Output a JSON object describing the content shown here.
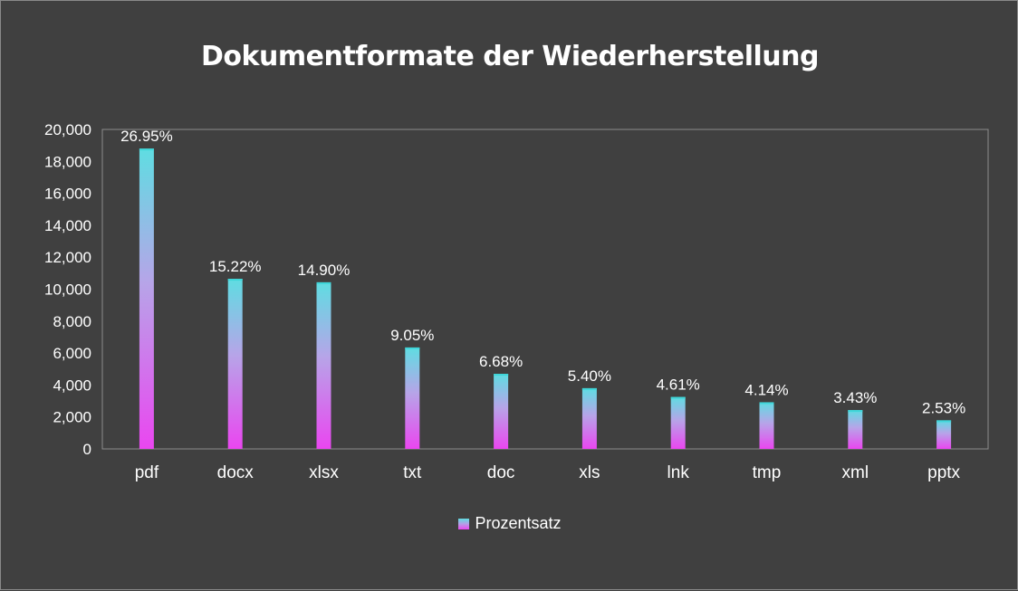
{
  "chart_data": {
    "type": "bar",
    "title": "Dokumentformate der Wiederherstellung",
    "categories": [
      "pdf",
      "docx",
      "xlsx",
      "txt",
      "doc",
      "xls",
      "lnk",
      "tmp",
      "xml",
      "pptx"
    ],
    "series": [
      {
        "name": "Prozentsatz",
        "values": [
          18800,
          10650,
          10430,
          6350,
          4700,
          3800,
          3250,
          2920,
          2430,
          1790
        ],
        "data_labels": [
          "26.95%",
          "15.22%",
          "14.90%",
          "9.05%",
          "6.68%",
          "5.40%",
          "4.61%",
          "4.14%",
          "3.43%",
          "2.53%"
        ]
      }
    ],
    "ylim": [
      0,
      20000
    ],
    "yticks": [
      0,
      2000,
      4000,
      6000,
      8000,
      10000,
      12000,
      14000,
      16000,
      18000,
      20000
    ],
    "ytick_labels": [
      "0",
      "2,000",
      "4,000",
      "6,000",
      "8,000",
      "10,000",
      "12,000",
      "14,000",
      "16,000",
      "18,000",
      "20,000"
    ],
    "grid": false,
    "legend_position": "bottom",
    "colors": {
      "bar_top": "#5fdde2",
      "bar_mid": "#b7a4e8",
      "bar_bottom": "#ea46f0",
      "background": "#404040",
      "axis": "#8c8c8c",
      "text": "#ffffff"
    }
  }
}
